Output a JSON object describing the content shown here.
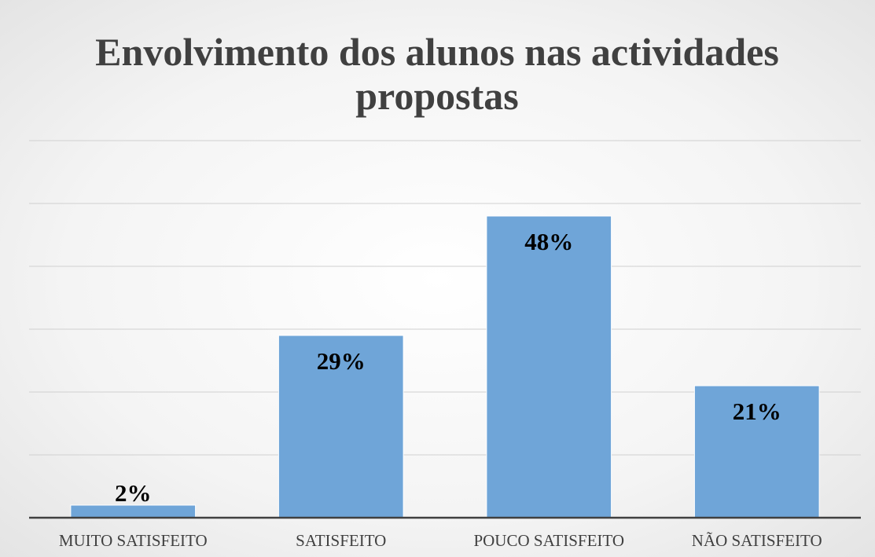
{
  "chart_data": {
    "type": "bar",
    "title": "Envolvimento dos alunos nas actividades propostas",
    "categories": [
      "MUITO SATISFEITO",
      "SATISFEITO",
      "POUCO SATISFEITO",
      "NÃO SATISFEITO"
    ],
    "values": [
      2,
      29,
      48,
      21
    ],
    "value_labels": [
      "2%",
      "29%",
      "48%",
      "21%"
    ],
    "color": "#6fa5d8",
    "ylim": [
      0,
      60
    ],
    "yticks": [
      0,
      10,
      20,
      30,
      40,
      50,
      60
    ],
    "grid": true
  }
}
